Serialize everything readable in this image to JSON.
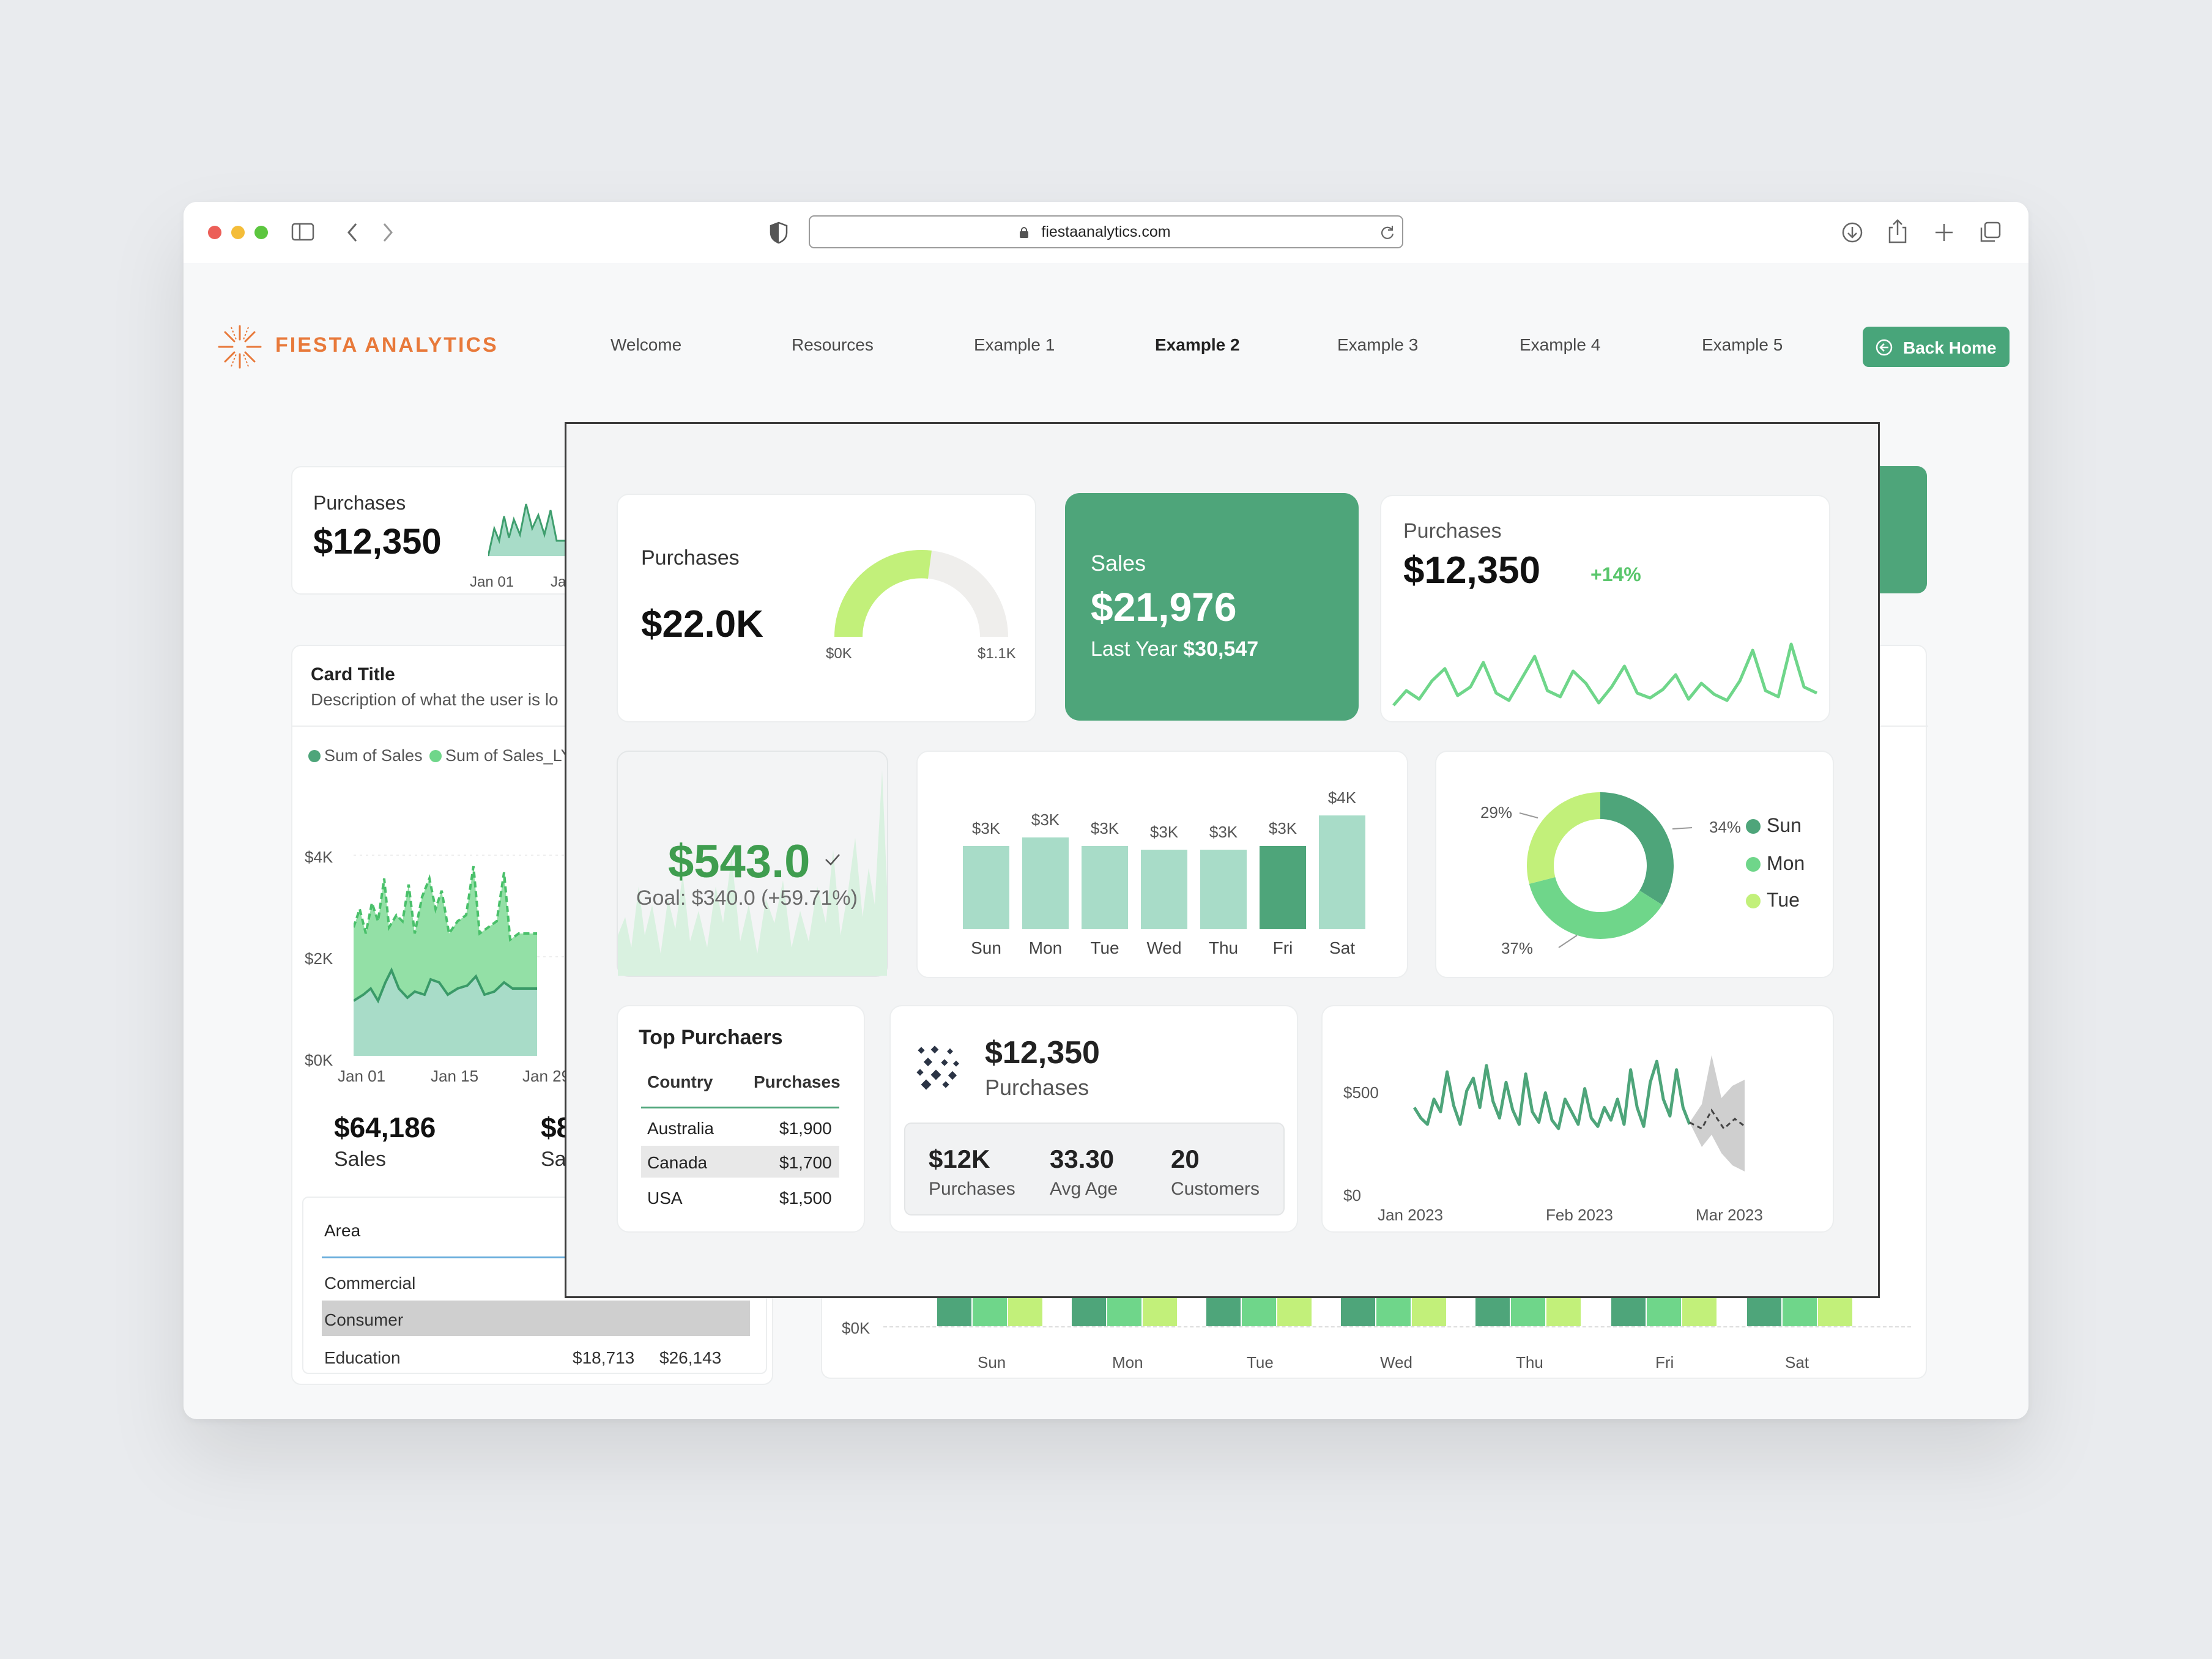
{
  "browser": {
    "url": "fiestaanalytics.com"
  },
  "brand": {
    "name": "FIESTA ANALYTICS",
    "color": "#e8793a"
  },
  "nav": {
    "items": [
      "Welcome",
      "Resources",
      "Example 1",
      "Example 2",
      "Example 3",
      "Example 4",
      "Example 5"
    ],
    "active": "Example 2",
    "back_home": "Back Home"
  },
  "colors": {
    "primary": "#4ea57a",
    "light_green": "#6fd68a",
    "lime": "#c2f07a",
    "mint": "#a8dcc8"
  },
  "background": {
    "kpi": {
      "label": "Purchases",
      "value": "$12,350",
      "date_labels": [
        "Jan 01",
        "Ja"
      ]
    },
    "card": {
      "title": "Card Title",
      "description": "Description of what the user is lo"
    },
    "legend": [
      "Sum of Sales",
      "Sum of Sales_LY"
    ],
    "y_ticks": [
      "$4K",
      "$2K",
      "$0K"
    ],
    "x_ticks": [
      "Jan 01",
      "Jan 15",
      "Jan 29"
    ],
    "sales_value": "$64,186",
    "sales_label": "Sales",
    "sales_value_2": "$8",
    "sales_label_2": "Sal",
    "table": {
      "header": "Area",
      "rows": [
        {
          "area": "Commercial",
          "v1": "",
          "v2": ""
        },
        {
          "area": "Consumer",
          "v1": "",
          "v2": ""
        },
        {
          "area": "Education",
          "v1": "$18,713",
          "v2": "$26,143"
        }
      ]
    },
    "bottom_chart": {
      "y_tick": "$0K",
      "days": [
        "Sun",
        "Mon",
        "Tue",
        "Wed",
        "Thu",
        "Fri",
        "Sat"
      ]
    }
  },
  "gauge_card": {
    "label": "Purchases",
    "value": "$22.0K",
    "min": "$0K",
    "max": "$1.1K"
  },
  "sales_card": {
    "label": "Sales",
    "value": "$21,976",
    "last_year_label": "Last Year",
    "last_year_value": "$30,547"
  },
  "purchases_card": {
    "label": "Purchases",
    "value": "$12,350",
    "change": "+14%"
  },
  "goal_card": {
    "value": "$543.0",
    "goal_text": "Goal: $340.0 (+59.71%)"
  },
  "bar_card": {},
  "donut_card": {
    "legend": [
      {
        "name": "Sun",
        "color": "#4ea57a"
      },
      {
        "name": "Mon",
        "color": "#6fd68a"
      },
      {
        "name": "Tue",
        "color": "#c2f07a"
      }
    ]
  },
  "top_purchasers": {
    "title": "Top Purchaers",
    "headers": [
      "Country",
      "Purchases"
    ],
    "rows": [
      {
        "country": "Australia",
        "purchases": "$1,900"
      },
      {
        "country": "Canada",
        "purchases": "$1,700"
      },
      {
        "country": "USA",
        "purchases": "$1,500"
      }
    ]
  },
  "kpi_card": {
    "value": "$12,350",
    "label": "Purchases",
    "stats": [
      {
        "value": "$12K",
        "label": "Purchases"
      },
      {
        "value": "33.30",
        "label": "Avg Age"
      },
      {
        "value": "20",
        "label": "Customers"
      }
    ]
  },
  "chart_data": [
    {
      "type": "bar",
      "categories": [
        "Sun",
        "Mon",
        "Tue",
        "Wed",
        "Thu",
        "Fri",
        "Sat"
      ],
      "values": [
        3,
        3,
        3,
        3,
        3,
        3,
        4
      ],
      "data_labels": [
        "$3K",
        "$3K",
        "$3K",
        "$3K",
        "$3K",
        "$3K",
        "$4K"
      ],
      "highlight": "Fri",
      "title": "",
      "xlabel": "",
      "ylabel": ""
    },
    {
      "type": "pie",
      "donut": true,
      "categories": [
        "Sun",
        "Mon",
        "Tue"
      ],
      "values": [
        34,
        37,
        29
      ],
      "data_labels": [
        "34%",
        "37%",
        "29%"
      ]
    },
    {
      "type": "line",
      "y_ticks": [
        "$500",
        "$0"
      ],
      "x_ticks": [
        "Jan 2023",
        "Feb 2023",
        "Mar 2023"
      ],
      "ylim": [
        0,
        600
      ],
      "series": [
        {
          "values": [
            380,
            330,
            300,
            420,
            360,
            550,
            390,
            300,
            460,
            520,
            380,
            580,
            410,
            330,
            500,
            370,
            300,
            540,
            360,
            310,
            450,
            320,
            280,
            420,
            360,
            300,
            470,
            330,
            290,
            380,
            320,
            420,
            300,
            560,
            380,
            290,
            500,
            600,
            420,
            340,
            560,
            380,
            300
          ]
        }
      ],
      "forecast": true
    },
    {
      "type": "line",
      "series": [
        {
          "values": [
            40,
            52,
            45,
            60,
            70,
            48,
            55,
            75,
            50,
            44,
            62,
            80,
            52,
            47,
            68,
            58,
            42,
            55,
            72,
            50,
            46,
            53,
            65,
            45,
            58,
            49,
            44,
            60,
            85,
            52,
            47,
            90,
            55,
            50
          ]
        }
      ]
    }
  ]
}
